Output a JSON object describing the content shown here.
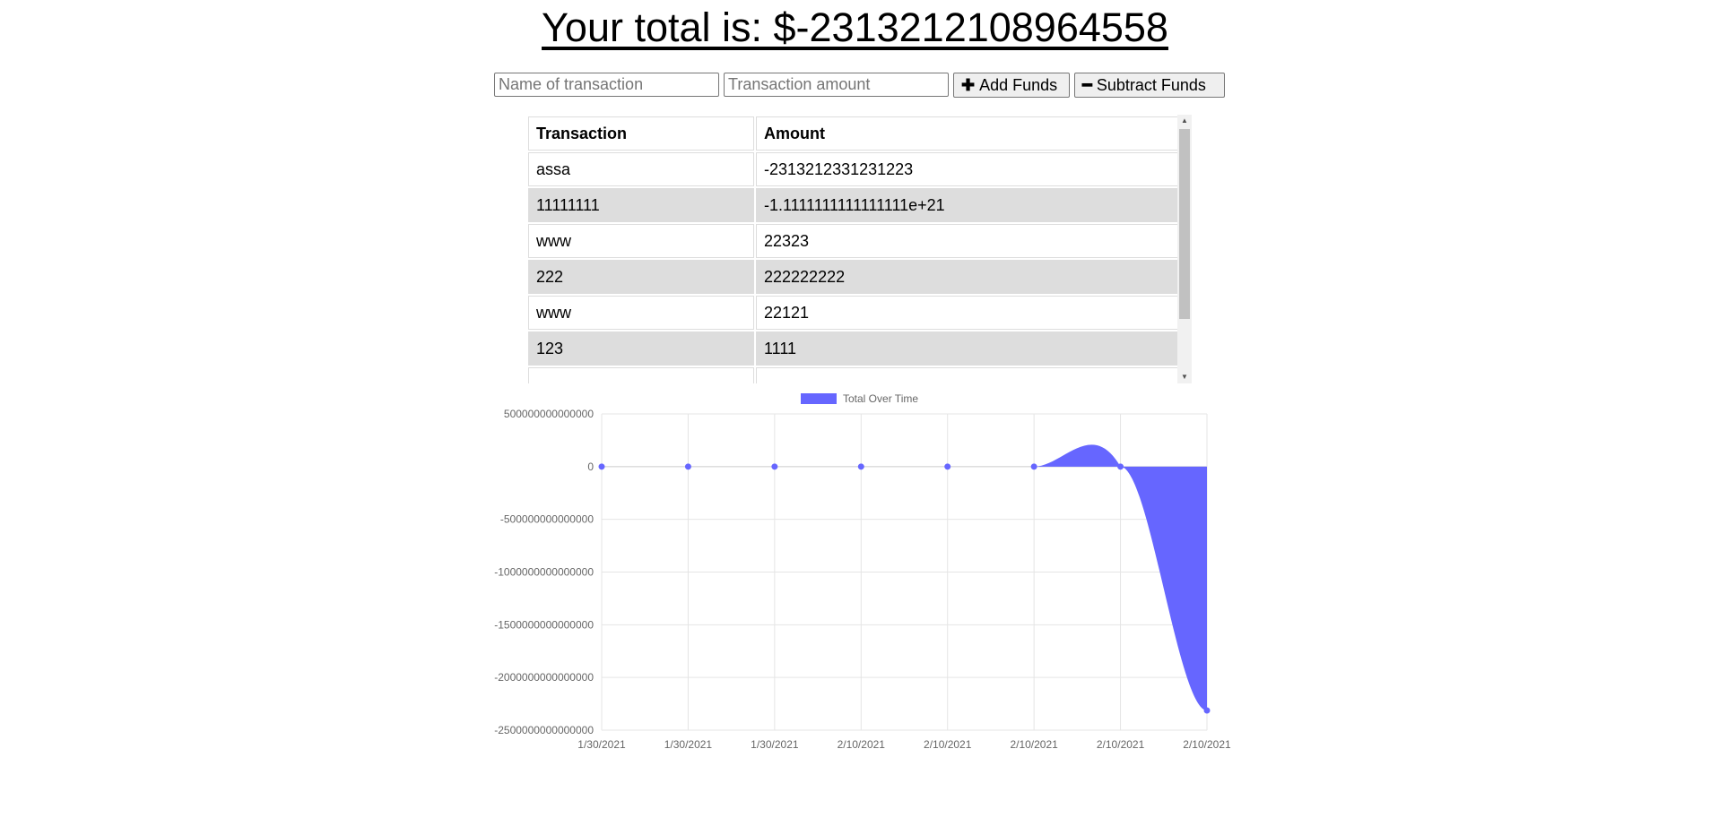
{
  "header": {
    "title": "Your total is: $-2313212108964558"
  },
  "form": {
    "name_placeholder": "Name of transaction",
    "amount_placeholder": "Transaction amount",
    "add_label": "Add Funds",
    "subtract_label": "Subtract Funds",
    "add_icon": "plus-icon",
    "subtract_icon": "minus-icon"
  },
  "table": {
    "headers": [
      "Transaction",
      "Amount"
    ],
    "rows": [
      [
        "assa",
        "-2313212331231223"
      ],
      [
        "11111111",
        "-1.1111111111111111e+21"
      ],
      [
        "www",
        "22323"
      ],
      [
        "222",
        "222222222"
      ],
      [
        "www",
        "22121"
      ],
      [
        "123",
        "1111"
      ]
    ]
  },
  "colors": {
    "series_fill": "#6666ff",
    "series_point": "#6666ff",
    "row_alt": "#dddddd",
    "grid": "#e5e5e5"
  },
  "chart_data": {
    "type": "area",
    "legend": "Total Over Time",
    "legend_position": "top",
    "grid": true,
    "x": [
      "1/30/2021",
      "1/30/2021",
      "1/30/2021",
      "2/10/2021",
      "2/10/2021",
      "2/10/2021",
      "2/10/2021",
      "2/10/2021"
    ],
    "y": [
      1111,
      23232,
      222244565,
      222266888,
      222289211,
      222289211,
      222289211,
      -2313212108964558
    ],
    "yticks": [
      500000000000000,
      0,
      -500000000000000,
      -1000000000000000,
      -1500000000000000,
      -2000000000000000,
      -2500000000000000
    ],
    "ytick_labels": [
      "500000000000000",
      "0",
      "-500000000000000",
      "-1000000000000000",
      "-1500000000000000",
      "-2000000000000000",
      "-2500000000000000"
    ],
    "ylim": [
      -2500000000000000,
      500000000000000
    ]
  }
}
